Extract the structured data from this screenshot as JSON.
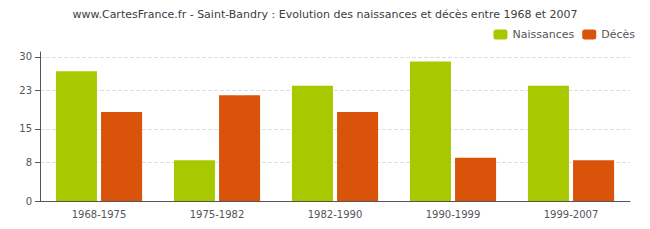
{
  "chart_data": {
    "type": "bar",
    "title": "www.CartesFrance.fr - Saint-Bandry : Evolution des naissances et décès entre 1968 et 2007",
    "categories": [
      "1968-1975",
      "1975-1982",
      "1982-1990",
      "1990-1999",
      "1999-2007"
    ],
    "series": [
      {
        "name": "Naissances",
        "color": "#a8c800",
        "values": [
          27,
          8.5,
          24,
          29,
          24
        ]
      },
      {
        "name": "Décès",
        "color": "#d9540a",
        "values": [
          18.5,
          22,
          18.5,
          9,
          8.5
        ]
      }
    ],
    "ylim": [
      0,
      31
    ],
    "yticks": [
      0,
      8,
      15,
      23,
      30
    ],
    "grid": true,
    "legend": "upper right"
  }
}
